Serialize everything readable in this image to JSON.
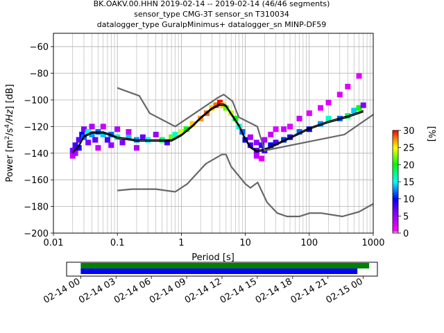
{
  "title_lines": [
    "BK.OAKV.00.HHN   2019-02-14 -- 2019-02-14  (46/46 segments)",
    "sensor_type CMG-3T sensor_sn T310034",
    "datalogger_type GuralpMinimus+ datalogger_sn MINP-DF59"
  ],
  "chart_data": [
    {
      "type": "heatmap",
      "xlabel": "Period [s]",
      "ylabel": "Power [m^2/s^4/Hz] [dB]",
      "xscale": "log",
      "xlim": [
        0.01,
        1000
      ],
      "ylim": [
        -200,
        -50
      ],
      "x_ticks": [
        0.01,
        0.1,
        1,
        10,
        100,
        1000
      ],
      "x_tick_labels": [
        "0.01",
        "0.1",
        "1",
        "10",
        "100",
        "1000"
      ],
      "y_ticks": [
        -200,
        -180,
        -160,
        -140,
        -120,
        -100,
        -80,
        -60
      ],
      "y_tick_labels": [
        "−200",
        "−180",
        "−160",
        "−140",
        "−120",
        "−100",
        "−80",
        "−60"
      ],
      "grid": true,
      "colorbar": {
        "label": "[%]",
        "range": [
          0,
          30
        ],
        "ticks": [
          0,
          5,
          10,
          15,
          20,
          25,
          30
        ],
        "tick_labels": [
          "0",
          "5",
          "10",
          "15",
          "20",
          "25",
          "30"
        ]
      },
      "series": [
        {
          "role": "mean",
          "color": "#000000",
          "x": [
            0.02,
            0.025,
            0.03,
            0.04,
            0.06,
            0.08,
            0.1,
            0.15,
            0.2,
            0.3,
            0.5,
            0.7,
            1,
            1.5,
            2,
            3,
            4,
            4.5,
            5,
            6,
            8,
            10,
            12,
            15,
            20,
            30,
            50,
            100,
            200,
            400,
            700
          ],
          "y": [
            -139,
            -134,
            -127,
            -124,
            -124,
            -126,
            -128,
            -129,
            -130,
            -130,
            -130,
            -130,
            -126,
            -119,
            -113,
            -106,
            -103,
            -103,
            -104,
            -110,
            -119,
            -129,
            -135,
            -138,
            -137,
            -133,
            -128,
            -121,
            -116,
            -112,
            -108
          ]
        },
        {
          "role": "mode",
          "color": "#000000",
          "x": [
            0.02,
            0.025,
            0.03,
            0.04,
            0.06,
            0.08,
            0.1,
            0.15,
            0.2,
            0.3,
            0.5,
            0.7,
            1,
            1.5,
            2,
            3,
            4,
            4.5,
            5,
            6,
            8,
            10,
            12,
            15,
            20,
            30,
            50,
            100,
            200,
            400,
            700
          ],
          "y": [
            -140,
            -135,
            -128,
            -125,
            -125,
            -127,
            -129,
            -130,
            -131,
            -131,
            -131,
            -131,
            -127,
            -120,
            -114,
            -107,
            -104,
            -104,
            -105,
            -111,
            -120,
            -130,
            -136,
            -139,
            -138,
            -134,
            -129,
            -122,
            -117,
            -113,
            -109
          ]
        },
        {
          "role": "NHNM",
          "color": "#666666",
          "x": [
            0.1,
            0.22,
            0.32,
            0.8,
            3.8,
            4.6,
            6.3,
            7.9,
            15.4,
            20,
            354.8,
            1000
          ],
          "y": [
            -91,
            -97,
            -110,
            -120,
            -98,
            -96,
            -101,
            -113,
            -120,
            -138,
            -126,
            -111
          ]
        },
        {
          "role": "NLNM",
          "color": "#666666",
          "x": [
            0.1,
            0.17,
            0.4,
            0.8,
            1.24,
            2.4,
            4.3,
            5,
            6,
            10,
            12,
            15.6,
            21.9,
            31.6,
            45,
            70,
            101,
            154,
            328,
            600,
            1000
          ],
          "y": [
            -168,
            -167,
            -167,
            -169,
            -163,
            -148,
            -141,
            -141,
            -150,
            -163,
            -166,
            -162,
            -177,
            -185,
            -187.5,
            -187.5,
            -185,
            -185,
            -187.5,
            -184,
            -178
          ]
        }
      ],
      "psd_band_points": [
        [
          0.02,
          -138,
          6
        ],
        [
          0.02,
          -142,
          3
        ],
        [
          0.022,
          -134,
          8
        ],
        [
          0.022,
          -140,
          4
        ],
        [
          0.025,
          -130,
          7
        ],
        [
          0.025,
          -136,
          9
        ],
        [
          0.028,
          -126,
          10
        ],
        [
          0.03,
          -122,
          6
        ],
        [
          0.03,
          -128,
          12
        ],
        [
          0.035,
          -124,
          15
        ],
        [
          0.035,
          -132,
          6
        ],
        [
          0.04,
          -120,
          4
        ],
        [
          0.04,
          -126,
          13
        ],
        [
          0.045,
          -130,
          7
        ],
        [
          0.05,
          -124,
          12
        ],
        [
          0.05,
          -136,
          3
        ],
        [
          0.06,
          -126,
          14
        ],
        [
          0.06,
          -120,
          3
        ],
        [
          0.07,
          -130,
          8
        ],
        [
          0.08,
          -126,
          12
        ],
        [
          0.08,
          -134,
          5
        ],
        [
          0.1,
          -128,
          16
        ],
        [
          0.1,
          -122,
          4
        ],
        [
          0.12,
          -132,
          6
        ],
        [
          0.15,
          -128,
          14
        ],
        [
          0.15,
          -124,
          3
        ],
        [
          0.2,
          -130,
          13
        ],
        [
          0.2,
          -136,
          4
        ],
        [
          0.25,
          -128,
          7
        ],
        [
          0.3,
          -130,
          15
        ],
        [
          0.4,
          -126,
          5
        ],
        [
          0.5,
          -130,
          18
        ],
        [
          0.6,
          -132,
          8
        ],
        [
          0.7,
          -128,
          22
        ],
        [
          0.8,
          -126,
          16
        ],
        [
          1,
          -124,
          24
        ],
        [
          1.2,
          -122,
          20
        ],
        [
          1.5,
          -118,
          26
        ],
        [
          2,
          -114,
          27
        ],
        [
          2.5,
          -110,
          28
        ],
        [
          3,
          -106,
          26
        ],
        [
          3.5,
          -104,
          28
        ],
        [
          4,
          -102,
          30
        ],
        [
          4.5,
          -104,
          26
        ],
        [
          5,
          -106,
          22
        ],
        [
          6,
          -110,
          24
        ],
        [
          7,
          -114,
          20
        ],
        [
          8,
          -120,
          16
        ],
        [
          9,
          -124,
          12
        ],
        [
          10,
          -130,
          10
        ],
        [
          12,
          -134,
          8
        ],
        [
          12,
          -128,
          4
        ],
        [
          15,
          -138,
          7
        ],
        [
          15,
          -142,
          3
        ],
        [
          15,
          -132,
          5
        ],
        [
          18,
          -134,
          9
        ],
        [
          18,
          -144,
          2
        ],
        [
          20,
          -138,
          8
        ],
        [
          20,
          -130,
          4
        ],
        [
          25,
          -134,
          10
        ],
        [
          25,
          -126,
          3
        ],
        [
          30,
          -132,
          8
        ],
        [
          30,
          -122,
          2
        ],
        [
          40,
          -130,
          11
        ],
        [
          40,
          -122,
          3
        ],
        [
          50,
          -128,
          9
        ],
        [
          50,
          -120,
          2
        ],
        [
          70,
          -124,
          12
        ],
        [
          70,
          -114,
          3
        ],
        [
          100,
          -122,
          10
        ],
        [
          100,
          -110,
          2
        ],
        [
          150,
          -118,
          13
        ],
        [
          150,
          -106,
          2
        ],
        [
          200,
          -114,
          16
        ],
        [
          200,
          -102,
          2
        ],
        [
          300,
          -114,
          12
        ],
        [
          300,
          -96,
          2
        ],
        [
          400,
          -112,
          18
        ],
        [
          400,
          -90,
          2
        ],
        [
          500,
          -108,
          14
        ],
        [
          600,
          -106,
          20
        ],
        [
          600,
          -82,
          2
        ],
        [
          700,
          -104,
          6
        ]
      ]
    },
    {
      "type": "timeline",
      "x_tick_labels": [
        "02-14 00",
        "02-14 03",
        "02-14 06",
        "02-14 09",
        "02-14 12",
        "02-14 15",
        "02-14 18",
        "02-14 21",
        "02-15 00"
      ],
      "x_ticks_hours": [
        0,
        3,
        6,
        9,
        12,
        15,
        18,
        21,
        24
      ],
      "xlim_hours": [
        -1.2,
        25.2
      ],
      "bars": [
        {
          "color": "#008000",
          "start_hour": 0,
          "end_hour": 24.5
        },
        {
          "color": "#0000ff",
          "start_hour": 0,
          "end_hour": 23.5
        }
      ]
    }
  ]
}
